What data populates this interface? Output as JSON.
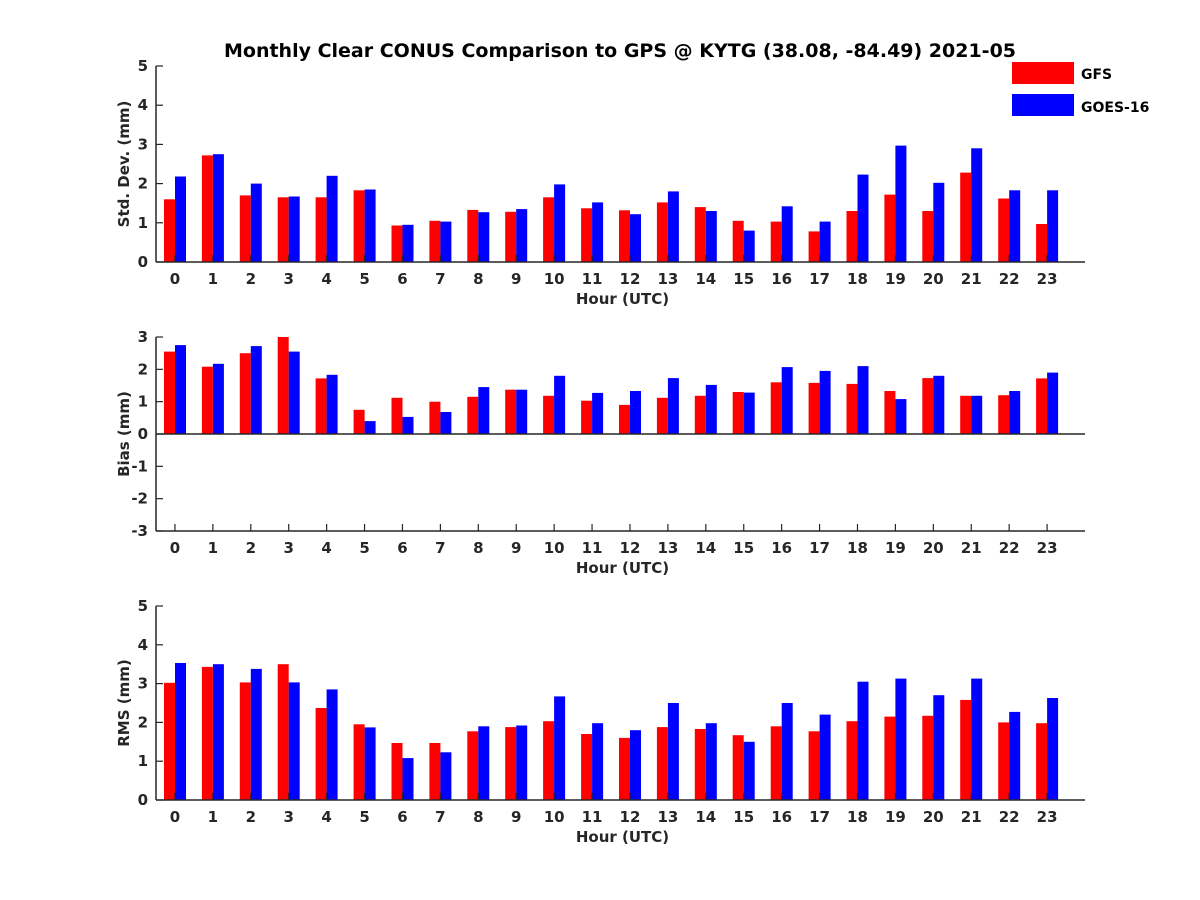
{
  "chart_data": {
    "title": "Monthly Clear CONUS Comparison to GPS @ KYTG (38.08, -84.49) 2021-05",
    "type": "bar",
    "legend": {
      "placement": "top-right",
      "entries": [
        {
          "name": "GFS",
          "color": "#ff0000"
        },
        {
          "name": "GOES-16",
          "color": "#0000ff"
        }
      ]
    },
    "categories": [
      "0",
      "1",
      "2",
      "3",
      "4",
      "5",
      "6",
      "7",
      "8",
      "9",
      "10",
      "11",
      "12",
      "13",
      "14",
      "15",
      "16",
      "17",
      "18",
      "19",
      "20",
      "21",
      "22",
      "23"
    ],
    "panels": [
      {
        "ylabel": "Std. Dev. (mm)",
        "xlabel": "Hour (UTC)",
        "ylim": [
          0,
          5
        ],
        "yticks": [
          0,
          1,
          2,
          3,
          4,
          5
        ],
        "series": [
          {
            "name": "GFS",
            "color": "#ff0000",
            "values": [
              1.6,
              2.72,
              1.7,
              1.65,
              1.65,
              1.83,
              0.93,
              1.05,
              1.33,
              1.28,
              1.65,
              1.37,
              1.32,
              1.52,
              1.4,
              1.05,
              1.03,
              0.78,
              1.3,
              1.72,
              1.3,
              2.28,
              1.62,
              0.97
            ]
          },
          {
            "name": "GOES-16",
            "color": "#0000ff",
            "values": [
              2.18,
              2.75,
              2.0,
              1.67,
              2.2,
              1.85,
              0.95,
              1.03,
              1.27,
              1.35,
              1.98,
              1.52,
              1.22,
              1.8,
              1.3,
              0.8,
              1.42,
              1.03,
              2.23,
              2.97,
              2.02,
              2.9,
              1.83,
              1.83
            ]
          }
        ]
      },
      {
        "ylabel": "Bias (mm)",
        "xlabel": "Hour (UTC)",
        "ylim": [
          -3,
          3
        ],
        "yticks": [
          -3,
          -2,
          -1,
          0,
          1,
          2,
          3
        ],
        "series": [
          {
            "name": "GFS",
            "color": "#ff0000",
            "values": [
              2.55,
              2.08,
              2.5,
              3.0,
              1.72,
              0.75,
              1.12,
              1.0,
              1.15,
              1.37,
              1.18,
              1.03,
              0.9,
              1.12,
              1.18,
              1.3,
              1.6,
              1.58,
              1.55,
              1.33,
              1.73,
              1.18,
              1.2,
              1.72
            ]
          },
          {
            "name": "GOES-16",
            "color": "#0000ff",
            "values": [
              2.75,
              2.17,
              2.72,
              2.55,
              1.83,
              0.4,
              0.53,
              0.68,
              1.45,
              1.37,
              1.8,
              1.27,
              1.33,
              1.73,
              1.52,
              1.28,
              2.07,
              1.95,
              2.1,
              1.08,
              1.8,
              1.18,
              1.33,
              1.9
            ]
          }
        ]
      },
      {
        "ylabel": "RMS (mm)",
        "xlabel": "Hour (UTC)",
        "ylim": [
          0,
          5
        ],
        "yticks": [
          0,
          1,
          2,
          3,
          4,
          5
        ],
        "series": [
          {
            "name": "GFS",
            "color": "#ff0000",
            "values": [
              3.02,
              3.43,
              3.03,
              3.5,
              2.37,
              1.95,
              1.47,
              1.47,
              1.77,
              1.88,
              2.03,
              1.7,
              1.6,
              1.88,
              1.83,
              1.67,
              1.9,
              1.77,
              2.03,
              2.15,
              2.17,
              2.58,
              2.0,
              1.98
            ]
          },
          {
            "name": "GOES-16",
            "color": "#0000ff",
            "values": [
              3.53,
              3.5,
              3.38,
              3.03,
              2.85,
              1.87,
              1.08,
              1.23,
              1.9,
              1.92,
              2.67,
              1.98,
              1.8,
              2.5,
              1.98,
              1.5,
              2.5,
              2.2,
              3.05,
              3.13,
              2.7,
              3.13,
              2.27,
              2.63
            ]
          }
        ]
      }
    ]
  }
}
